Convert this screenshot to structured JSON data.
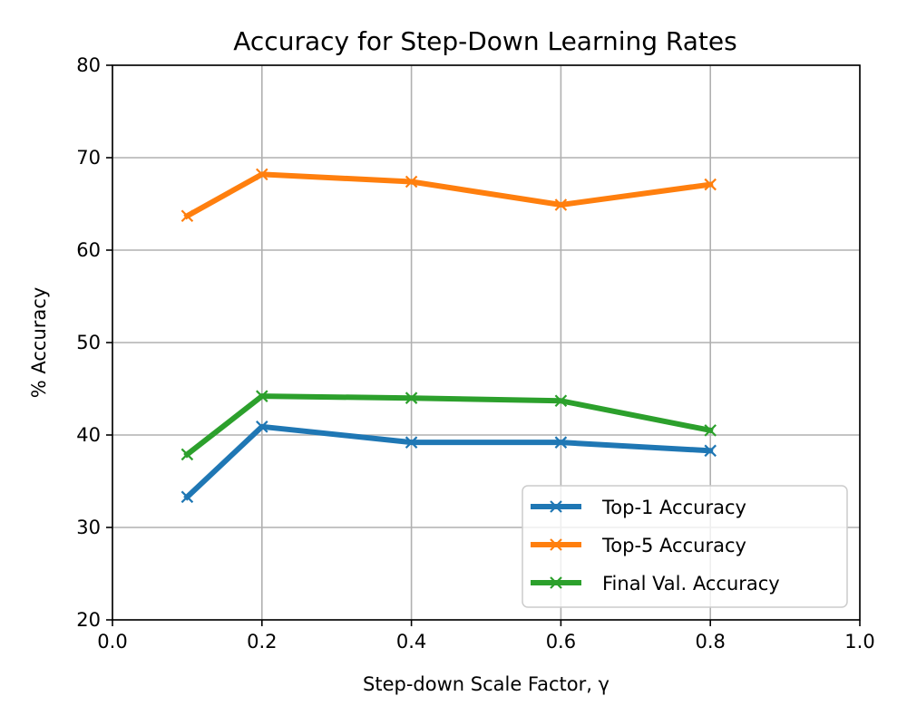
{
  "chart_data": {
    "type": "line",
    "title": "Accuracy for Step-Down Learning Rates",
    "xlabel": "Step-down Scale Factor, γ",
    "ylabel": "% Accuracy",
    "xlim": [
      0.0,
      1.0
    ],
    "ylim": [
      20,
      80
    ],
    "xticks": [
      "0.0",
      "0.2",
      "0.4",
      "0.6",
      "0.8",
      "1.0"
    ],
    "yticks": [
      "20",
      "30",
      "40",
      "50",
      "60",
      "70",
      "80"
    ],
    "grid": true,
    "legend_position": "lower-right",
    "x": [
      0.1,
      0.2,
      0.4,
      0.6,
      0.8
    ],
    "series": [
      {
        "name": "Top-1 Accuracy",
        "color": "#1f77b4",
        "values": [
          33.3,
          40.9,
          39.2,
          39.2,
          38.3
        ]
      },
      {
        "name": "Top-5 Accuracy",
        "color": "#ff7f0e",
        "values": [
          63.7,
          68.2,
          67.4,
          64.9,
          67.1
        ]
      },
      {
        "name": "Final Val. Accuracy",
        "color": "#2ca02c",
        "values": [
          37.9,
          44.2,
          44.0,
          43.7,
          40.5
        ]
      }
    ]
  }
}
